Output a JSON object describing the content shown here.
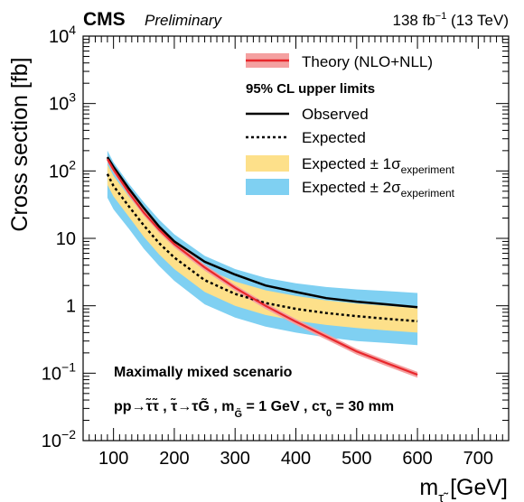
{
  "header": {
    "experiment": "CMS",
    "status": "Preliminary",
    "lumi_prefix": "138 fb",
    "lumi_exp": "−1",
    "lumi_suffix": " (13 TeV)"
  },
  "legend": {
    "theory": "Theory (NLO+NLL)",
    "heading": "95% CL upper limits",
    "observed": "Observed",
    "expected": "Expected",
    "band1_prefix": "Expected ± 1σ",
    "band1_sub": "experiment",
    "band2_prefix": "Expected ± 2σ",
    "band2_sub": "experiment"
  },
  "annotations": {
    "scenario": "Maximally mixed scenario",
    "process": "pp→τ̃τ̃ , τ̃→τG̃ , m",
    "process_sub": "G̃",
    "process_tail": " = 1 GeV , cτ",
    "process_sub2": "0",
    "process_end": " = 30 mm"
  },
  "axes": {
    "ylabel": "Cross section [fb]",
    "xlabel_main": "m",
    "xlabel_sub": "τ̃",
    "xlabel_unit": " [GeV]",
    "y_ticks": [
      {
        "base": "10",
        "exp": "−2",
        "plain": ""
      },
      {
        "base": "10",
        "exp": "−1",
        "plain": ""
      },
      {
        "base": "",
        "exp": "",
        "plain": "1"
      },
      {
        "base": "",
        "exp": "",
        "plain": "10"
      },
      {
        "base": "10",
        "exp": "2",
        "plain": ""
      },
      {
        "base": "10",
        "exp": "3",
        "plain": ""
      },
      {
        "base": "10",
        "exp": "4",
        "plain": ""
      }
    ],
    "x_ticks": [
      "100",
      "200",
      "300",
      "400",
      "500",
      "600",
      "700"
    ]
  },
  "colors": {
    "theory": "#e8262b",
    "theory_band": "#f4a0a0",
    "band1": "#fde08a",
    "band2": "#7fd0f2",
    "line": "#000000"
  },
  "chart_data": {
    "type": "line",
    "xlim": [
      50,
      750
    ],
    "ylim": [
      0.01,
      10000
    ],
    "yscale": "log",
    "x": [
      90,
      100,
      125,
      150,
      175,
      200,
      250,
      300,
      350,
      400,
      450,
      500,
      550,
      600
    ],
    "series": [
      {
        "name": "Observed",
        "values": [
          160,
          115,
          55,
          28,
          15,
          9,
          4.5,
          2.9,
          2.0,
          1.6,
          1.3,
          1.15,
          1.05,
          0.95
        ]
      },
      {
        "name": "Expected",
        "values": [
          90,
          60,
          30,
          15.5,
          8.5,
          5.2,
          2.4,
          1.5,
          1.1,
          0.9,
          0.78,
          0.7,
          0.64,
          0.59
        ]
      },
      {
        "name": "Expected ± 1σ upper",
        "values": [
          125,
          85,
          42,
          22,
          12.5,
          7.5,
          3.6,
          2.3,
          1.7,
          1.4,
          1.2,
          1.08,
          1.0,
          0.92
        ]
      },
      {
        "name": "Expected ± 1σ lower",
        "values": [
          62,
          42,
          21,
          10.5,
          5.8,
          3.5,
          1.6,
          1.0,
          0.73,
          0.6,
          0.52,
          0.47,
          0.43,
          0.4
        ]
      },
      {
        "name": "Expected ± 2σ upper",
        "values": [
          200,
          135,
          65,
          34,
          19,
          11.5,
          5.5,
          3.5,
          2.6,
          2.15,
          1.9,
          1.75,
          1.65,
          1.55
        ]
      },
      {
        "name": "Expected ± 2σ lower",
        "values": [
          40,
          27,
          14,
          7,
          3.9,
          2.35,
          1.05,
          0.67,
          0.49,
          0.4,
          0.34,
          0.3,
          0.28,
          0.26
        ]
      },
      {
        "name": "Theory (NLO+NLL)",
        "values": [
          150,
          105,
          48,
          24,
          13.5,
          8.2,
          3.7,
          1.85,
          1.0,
          0.58,
          0.35,
          0.21,
          0.14,
          0.095
        ]
      }
    ],
    "theory_band_fraction": 0.1
  }
}
